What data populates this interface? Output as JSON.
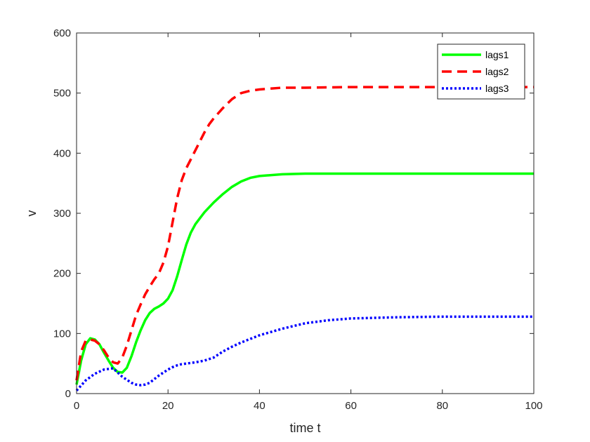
{
  "chart_data": {
    "type": "line",
    "title": "",
    "xlabel": "time t",
    "ylabel": "v",
    "xlim": [
      0,
      100
    ],
    "ylim": [
      0,
      600
    ],
    "xticks": [
      0,
      20,
      40,
      60,
      80,
      100
    ],
    "yticks": [
      0,
      100,
      200,
      300,
      400,
      500,
      600
    ],
    "grid": false,
    "legend_position": "top-right",
    "series": [
      {
        "name": "lags1",
        "color": "#00ff00",
        "style": "solid",
        "points": [
          [
            0,
            15
          ],
          [
            1,
            55
          ],
          [
            2,
            82
          ],
          [
            3,
            92
          ],
          [
            4,
            90
          ],
          [
            5,
            82
          ],
          [
            6,
            68
          ],
          [
            7,
            55
          ],
          [
            8,
            43
          ],
          [
            9,
            36
          ],
          [
            10,
            35
          ],
          [
            11,
            43
          ],
          [
            12,
            62
          ],
          [
            13,
            85
          ],
          [
            14,
            105
          ],
          [
            15,
            122
          ],
          [
            16,
            134
          ],
          [
            17,
            141
          ],
          [
            18,
            145
          ],
          [
            19,
            150
          ],
          [
            20,
            158
          ],
          [
            21,
            172
          ],
          [
            22,
            195
          ],
          [
            23,
            222
          ],
          [
            24,
            248
          ],
          [
            25,
            268
          ],
          [
            26,
            282
          ],
          [
            27,
            292
          ],
          [
            28,
            302
          ],
          [
            29,
            310
          ],
          [
            30,
            318
          ],
          [
            32,
            332
          ],
          [
            34,
            344
          ],
          [
            36,
            353
          ],
          [
            38,
            359
          ],
          [
            40,
            362
          ],
          [
            45,
            365
          ],
          [
            50,
            366
          ],
          [
            60,
            366
          ],
          [
            70,
            366
          ],
          [
            80,
            366
          ],
          [
            90,
            366
          ],
          [
            100,
            366
          ]
        ]
      },
      {
        "name": "lags2",
        "color": "#ff0000",
        "style": "dashed",
        "points": [
          [
            0,
            22
          ],
          [
            1,
            70
          ],
          [
            2,
            88
          ],
          [
            3,
            90
          ],
          [
            4,
            88
          ],
          [
            5,
            82
          ],
          [
            6,
            72
          ],
          [
            7,
            60
          ],
          [
            8,
            52
          ],
          [
            9,
            50
          ],
          [
            10,
            60
          ],
          [
            11,
            80
          ],
          [
            12,
            105
          ],
          [
            13,
            130
          ],
          [
            14,
            148
          ],
          [
            15,
            165
          ],
          [
            16,
            178
          ],
          [
            17,
            190
          ],
          [
            18,
            200
          ],
          [
            19,
            218
          ],
          [
            20,
            245
          ],
          [
            21,
            285
          ],
          [
            22,
            325
          ],
          [
            23,
            355
          ],
          [
            24,
            375
          ],
          [
            25,
            390
          ],
          [
            26,
            405
          ],
          [
            27,
            420
          ],
          [
            28,
            435
          ],
          [
            29,
            448
          ],
          [
            30,
            458
          ],
          [
            32,
            475
          ],
          [
            34,
            490
          ],
          [
            36,
            500
          ],
          [
            38,
            504
          ],
          [
            40,
            506
          ],
          [
            45,
            509
          ],
          [
            50,
            509
          ],
          [
            60,
            510
          ],
          [
            70,
            510
          ],
          [
            80,
            510
          ],
          [
            90,
            510
          ],
          [
            100,
            510
          ]
        ]
      },
      {
        "name": "lags3",
        "color": "#0000ff",
        "style": "dotted",
        "points": [
          [
            0,
            5
          ],
          [
            2,
            22
          ],
          [
            4,
            33
          ],
          [
            6,
            40
          ],
          [
            8,
            42
          ],
          [
            9,
            35
          ],
          [
            10,
            28
          ],
          [
            11,
            23
          ],
          [
            12,
            18
          ],
          [
            13,
            15
          ],
          [
            14,
            14
          ],
          [
            15,
            15
          ],
          [
            16,
            18
          ],
          [
            17,
            24
          ],
          [
            18,
            30
          ],
          [
            19,
            35
          ],
          [
            20,
            40
          ],
          [
            21,
            44
          ],
          [
            22,
            47
          ],
          [
            23,
            49
          ],
          [
            24,
            50
          ],
          [
            26,
            52
          ],
          [
            28,
            55
          ],
          [
            30,
            60
          ],
          [
            32,
            70
          ],
          [
            34,
            78
          ],
          [
            36,
            85
          ],
          [
            38,
            91
          ],
          [
            40,
            97
          ],
          [
            45,
            108
          ],
          [
            50,
            117
          ],
          [
            55,
            122
          ],
          [
            60,
            125
          ],
          [
            70,
            127
          ],
          [
            80,
            128
          ],
          [
            90,
            128
          ],
          [
            100,
            128
          ]
        ]
      }
    ]
  }
}
